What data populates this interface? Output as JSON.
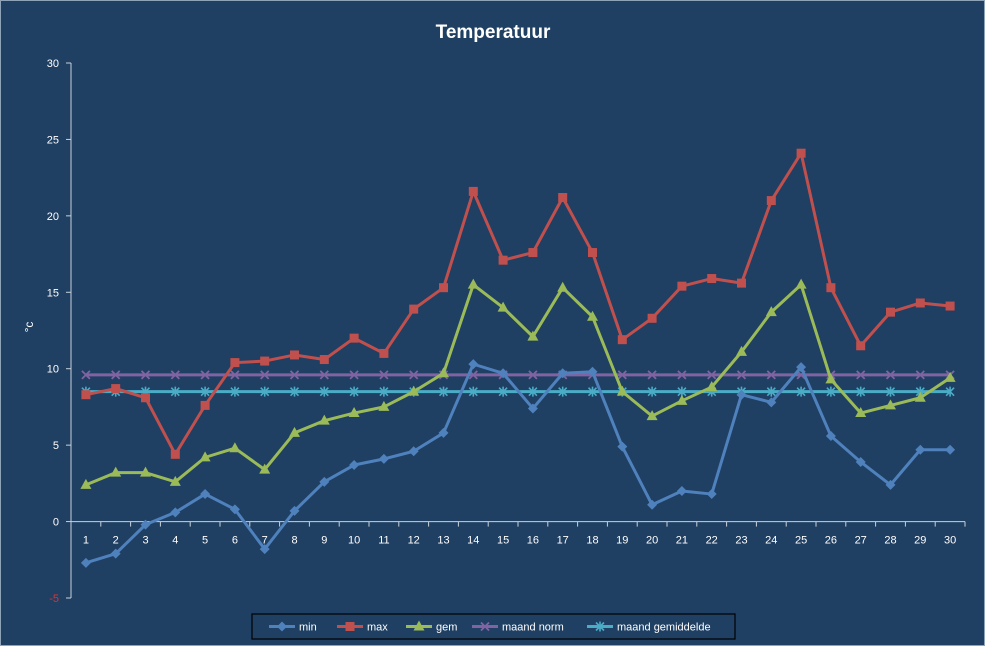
{
  "colors": {
    "background": "#1f3f63",
    "axis": "#c8d2dc",
    "tick_text": "#ffffff",
    "negative_tick": "#e03030"
  },
  "chart_data": {
    "type": "line",
    "title": "Temperatuur",
    "xlabel": "",
    "ylabel": "°c",
    "ylim": [
      -5,
      30
    ],
    "yticks": [
      -5,
      0,
      5,
      10,
      15,
      20,
      25,
      30
    ],
    "grid": false,
    "legend_position": "bottom",
    "x": [
      1,
      2,
      3,
      4,
      5,
      6,
      7,
      8,
      9,
      10,
      11,
      12,
      13,
      14,
      15,
      16,
      17,
      18,
      19,
      20,
      21,
      22,
      23,
      24,
      25,
      26,
      27,
      28,
      29,
      30
    ],
    "series": [
      {
        "name": "min",
        "color": "#4f81bd",
        "marker": "diamond",
        "values": [
          -2.7,
          -2.1,
          -0.2,
          0.6,
          1.8,
          0.8,
          -1.8,
          0.7,
          2.6,
          3.7,
          4.1,
          4.6,
          5.8,
          10.3,
          9.7,
          7.4,
          9.7,
          9.8,
          4.9,
          1.1,
          2.0,
          1.8,
          8.3,
          7.8,
          10.1,
          5.6,
          3.9,
          2.4,
          4.7,
          4.7
        ]
      },
      {
        "name": "max",
        "color": "#c0504d",
        "marker": "square",
        "values": [
          8.3,
          8.7,
          8.1,
          4.4,
          7.6,
          10.4,
          10.5,
          10.9,
          10.6,
          12.0,
          11.0,
          13.9,
          15.3,
          21.6,
          17.1,
          17.6,
          21.2,
          17.6,
          11.9,
          13.3,
          15.4,
          15.9,
          15.6,
          21.0,
          24.1,
          15.3,
          11.5,
          13.7,
          14.3,
          14.1
        ]
      },
      {
        "name": "gem",
        "color": "#9bbb59",
        "marker": "triangle",
        "values": [
          2.4,
          3.2,
          3.2,
          2.6,
          4.2,
          4.8,
          3.4,
          5.8,
          6.6,
          7.1,
          7.5,
          8.5,
          9.7,
          15.5,
          14.0,
          12.1,
          15.3,
          13.4,
          8.5,
          6.9,
          7.9,
          8.8,
          11.1,
          13.7,
          15.5,
          9.3,
          7.1,
          7.6,
          8.1,
          9.4
        ]
      },
      {
        "name": "maand norm",
        "color": "#8064a2",
        "marker": "x",
        "values": [
          9.6,
          9.6,
          9.6,
          9.6,
          9.6,
          9.6,
          9.6,
          9.6,
          9.6,
          9.6,
          9.6,
          9.6,
          9.6,
          9.6,
          9.6,
          9.6,
          9.6,
          9.6,
          9.6,
          9.6,
          9.6,
          9.6,
          9.6,
          9.6,
          9.6,
          9.6,
          9.6,
          9.6,
          9.6,
          9.6
        ]
      },
      {
        "name": "maand gemiddelde",
        "color": "#4bacc6",
        "marker": "star",
        "values": [
          8.5,
          8.5,
          8.5,
          8.5,
          8.5,
          8.5,
          8.5,
          8.5,
          8.5,
          8.5,
          8.5,
          8.5,
          8.5,
          8.5,
          8.5,
          8.5,
          8.5,
          8.5,
          8.5,
          8.5,
          8.5,
          8.5,
          8.5,
          8.5,
          8.5,
          8.5,
          8.5,
          8.5,
          8.5,
          8.5
        ]
      }
    ]
  }
}
